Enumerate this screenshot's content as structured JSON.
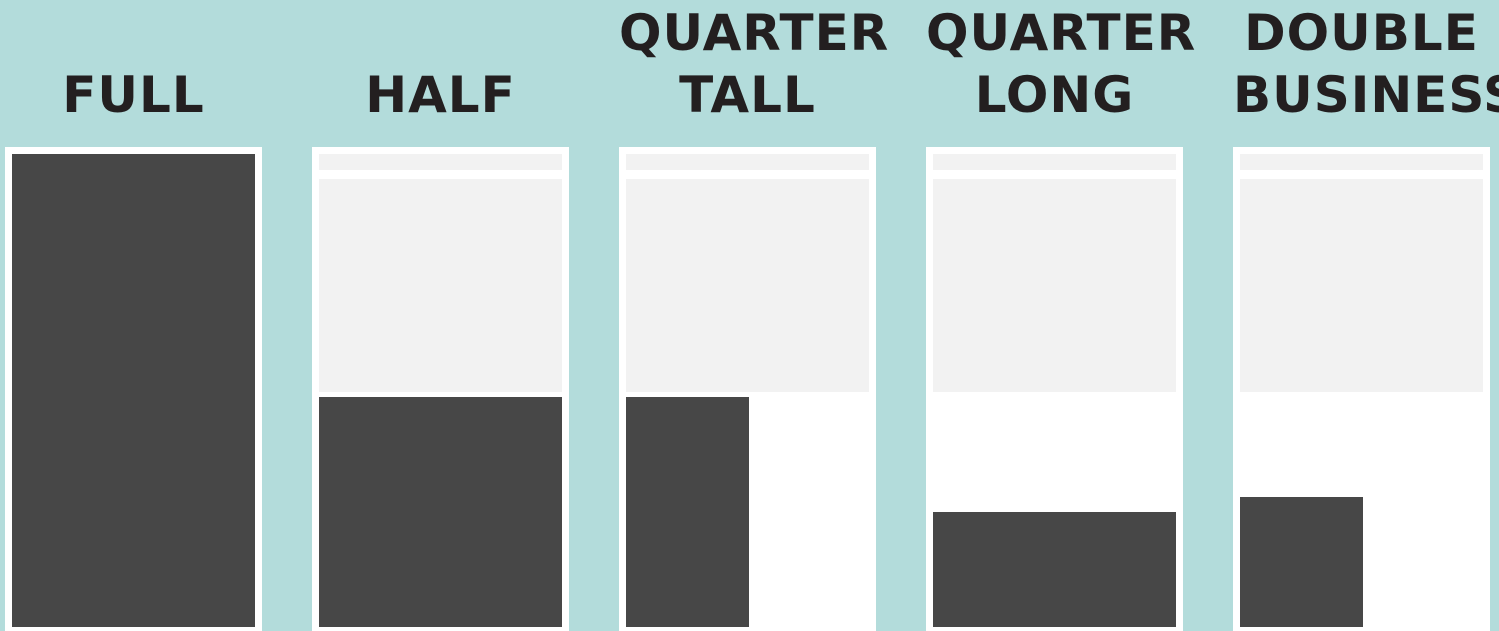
{
  "colors": {
    "background": "#b3dcdb",
    "page": "#ffffff",
    "placeholder": "#f2f2f2",
    "ad_fill": "#474747",
    "label_text": "#231f20"
  },
  "ad_sizes": [
    {
      "id": "full",
      "title_lines": [
        "FULL"
      ],
      "page_fraction": {
        "width": 1.0,
        "height": 1.0
      },
      "position": "full-page"
    },
    {
      "id": "half",
      "title_lines": [
        "HALF"
      ],
      "page_fraction": {
        "width": 1.0,
        "height": 0.5
      },
      "position": "bottom"
    },
    {
      "id": "quarter-tall",
      "title_lines": [
        "QUARTER",
        "TALL"
      ],
      "page_fraction": {
        "width": 0.5,
        "height": 0.5
      },
      "position": "bottom-left"
    },
    {
      "id": "quarter-long",
      "title_lines": [
        "QUARTER",
        "LONG"
      ],
      "page_fraction": {
        "width": 1.0,
        "height": 0.25
      },
      "position": "bottom"
    },
    {
      "id": "double-business",
      "title_lines": [
        "DOUBLE",
        "BUSINESS"
      ],
      "page_fraction": {
        "width": 0.5,
        "height": 0.28
      },
      "position": "bottom-left"
    }
  ]
}
